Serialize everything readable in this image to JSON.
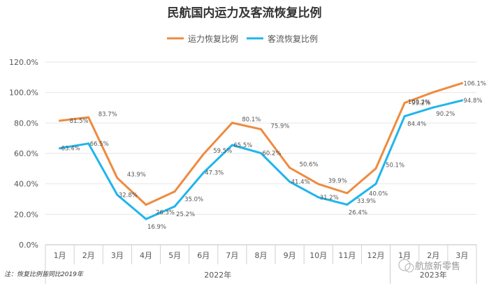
{
  "chart_data": {
    "type": "line",
    "title": "民航国内运力及客流恢复比例",
    "categories": [
      "1月",
      "2月",
      "3月",
      "4月",
      "5月",
      "6月",
      "7月",
      "8月",
      "9月",
      "10月",
      "11月",
      "12月",
      "1月",
      "2月",
      "3月"
    ],
    "year_groups": [
      {
        "label": "2022年",
        "start": 0,
        "end": 11
      },
      {
        "label": "2023年",
        "start": 12,
        "end": 14
      }
    ],
    "series": [
      {
        "name": "运力恢复比例",
        "color": "#EE8B3F",
        "values": [
          81.5,
          83.7,
          43.9,
          26.3,
          35.0,
          59.5,
          80.1,
          75.9,
          50.6,
          39.9,
          33.9,
          50.1,
          93.2,
          100.2,
          106.1
        ]
      },
      {
        "name": "客流恢复比例",
        "color": "#1FB5EC",
        "values": [
          63.4,
          66.5,
          32.8,
          16.9,
          25.2,
          47.3,
          65.5,
          60.2,
          41.4,
          31.2,
          26.4,
          40.0,
          84.4,
          90.2,
          94.8
        ]
      }
    ],
    "data_labels": {
      "s0": [
        "81.5%",
        "83.7%",
        "43.9%",
        "26.3%",
        "35.0%",
        "59.5%",
        "80.1%",
        "75.9%",
        "50.6%",
        "39.9%",
        "33.9%",
        "50.1%",
        "93.2%",
        "100.2%",
        "106.1%"
      ],
      "s1": [
        "63.4%",
        "66.5%",
        "32.8%",
        "16.9%",
        "25.2%",
        "47.3%",
        "65.5%",
        "60.2%",
        "41.4%",
        "31.2%",
        "26.4%",
        "40.0%",
        "84.4%",
        "90.2%",
        "94.8%"
      ]
    },
    "ylim": [
      0,
      120
    ],
    "yticks": [
      "0.0%",
      "20.0%",
      "40.0%",
      "60.0%",
      "80.0%",
      "100.0%",
      "120.0%"
    ],
    "grid": true,
    "legend": "top-center"
  },
  "footnote": "注：恢复比例皆同比2019年",
  "watermark": "航旅新零售"
}
